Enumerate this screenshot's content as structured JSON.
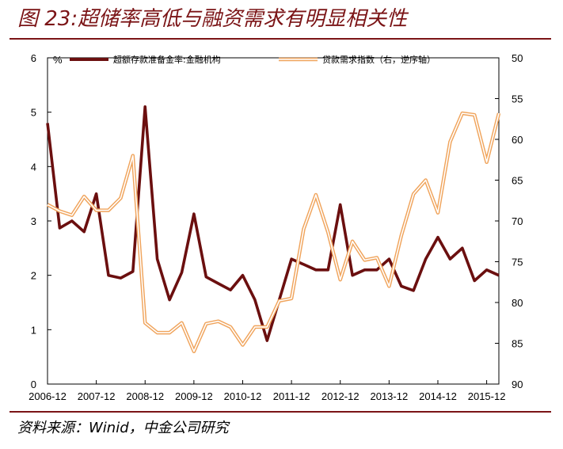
{
  "figure": {
    "title": "图 23:超储率高低与融资需求有明显相关性",
    "source": "资料来源：Winid，中金公司研究"
  },
  "chart_data": {
    "type": "line",
    "x_labels": [
      "2006-12",
      "2007-12",
      "2008-12",
      "2009-12",
      "2010-12",
      "2011-12",
      "2012-12",
      "2013-12",
      "2014-12",
      "2015-12"
    ],
    "left_axis": {
      "unit": "%",
      "ylim": [
        0,
        6
      ],
      "ticks": [
        0,
        1,
        2,
        3,
        4,
        5,
        6
      ]
    },
    "right_axis": {
      "ylim": [
        50,
        90
      ],
      "ticks": [
        50,
        55,
        60,
        65,
        70,
        75,
        80,
        85,
        90
      ],
      "inverted": true
    },
    "grid": false,
    "legend_position": "top",
    "series": [
      {
        "name": "超额存款准备金率:金融机构",
        "axis": "left",
        "color": "#6b0f0f",
        "style": "solid",
        "x": [
          2006.92,
          2007.17,
          2007.42,
          2007.67,
          2007.92,
          2008.17,
          2008.42,
          2008.67,
          2008.92,
          2009.17,
          2009.42,
          2009.67,
          2009.92,
          2010.17,
          2010.42,
          2010.67,
          2010.92,
          2011.17,
          2011.42,
          2011.67,
          2011.92,
          2012.17,
          2012.42,
          2012.67,
          2012.92,
          2013.17,
          2013.42,
          2013.67,
          2013.92,
          2014.17,
          2014.42,
          2014.67,
          2014.92,
          2015.17,
          2015.42,
          2015.67,
          2015.92,
          2016.17
        ],
        "values": [
          4.8,
          2.87,
          3.0,
          2.8,
          3.5,
          2.0,
          1.95,
          2.07,
          5.1,
          2.3,
          1.55,
          2.05,
          3.13,
          1.97,
          1.85,
          1.73,
          2.0,
          1.55,
          0.8,
          1.55,
          2.3,
          2.2,
          2.1,
          2.1,
          3.3,
          2.0,
          2.1,
          2.1,
          2.3,
          1.8,
          1.72,
          2.3,
          2.7,
          2.3,
          2.5,
          1.9,
          2.1,
          2.0
        ]
      },
      {
        "name": "贷款需求指数（右，逆序轴）",
        "axis": "right",
        "color": "#f0a45c",
        "style": "double",
        "x": [
          2006.92,
          2007.17,
          2007.42,
          2007.67,
          2007.92,
          2008.17,
          2008.42,
          2008.67,
          2008.92,
          2009.17,
          2009.42,
          2009.67,
          2009.92,
          2010.17,
          2010.42,
          2010.67,
          2010.92,
          2011.17,
          2011.42,
          2011.67,
          2011.92,
          2012.17,
          2012.42,
          2012.67,
          2012.92,
          2013.17,
          2013.42,
          2013.67,
          2013.92,
          2014.17,
          2014.42,
          2014.67,
          2014.92,
          2015.17,
          2015.42,
          2015.67,
          2015.92,
          2016.17
        ],
        "values": [
          68.0,
          68.8,
          69.3,
          67.0,
          68.7,
          68.7,
          67.2,
          62.0,
          82.5,
          83.7,
          83.7,
          82.5,
          86.0,
          82.6,
          82.3,
          83.0,
          85.2,
          83.0,
          83.0,
          79.8,
          79.5,
          71.0,
          66.8,
          71.4,
          77.2,
          72.5,
          74.8,
          74.5,
          78.0,
          71.8,
          66.7,
          65.0,
          69.0,
          60.3,
          56.8,
          57.0,
          62.8,
          56.8
        ]
      }
    ]
  }
}
